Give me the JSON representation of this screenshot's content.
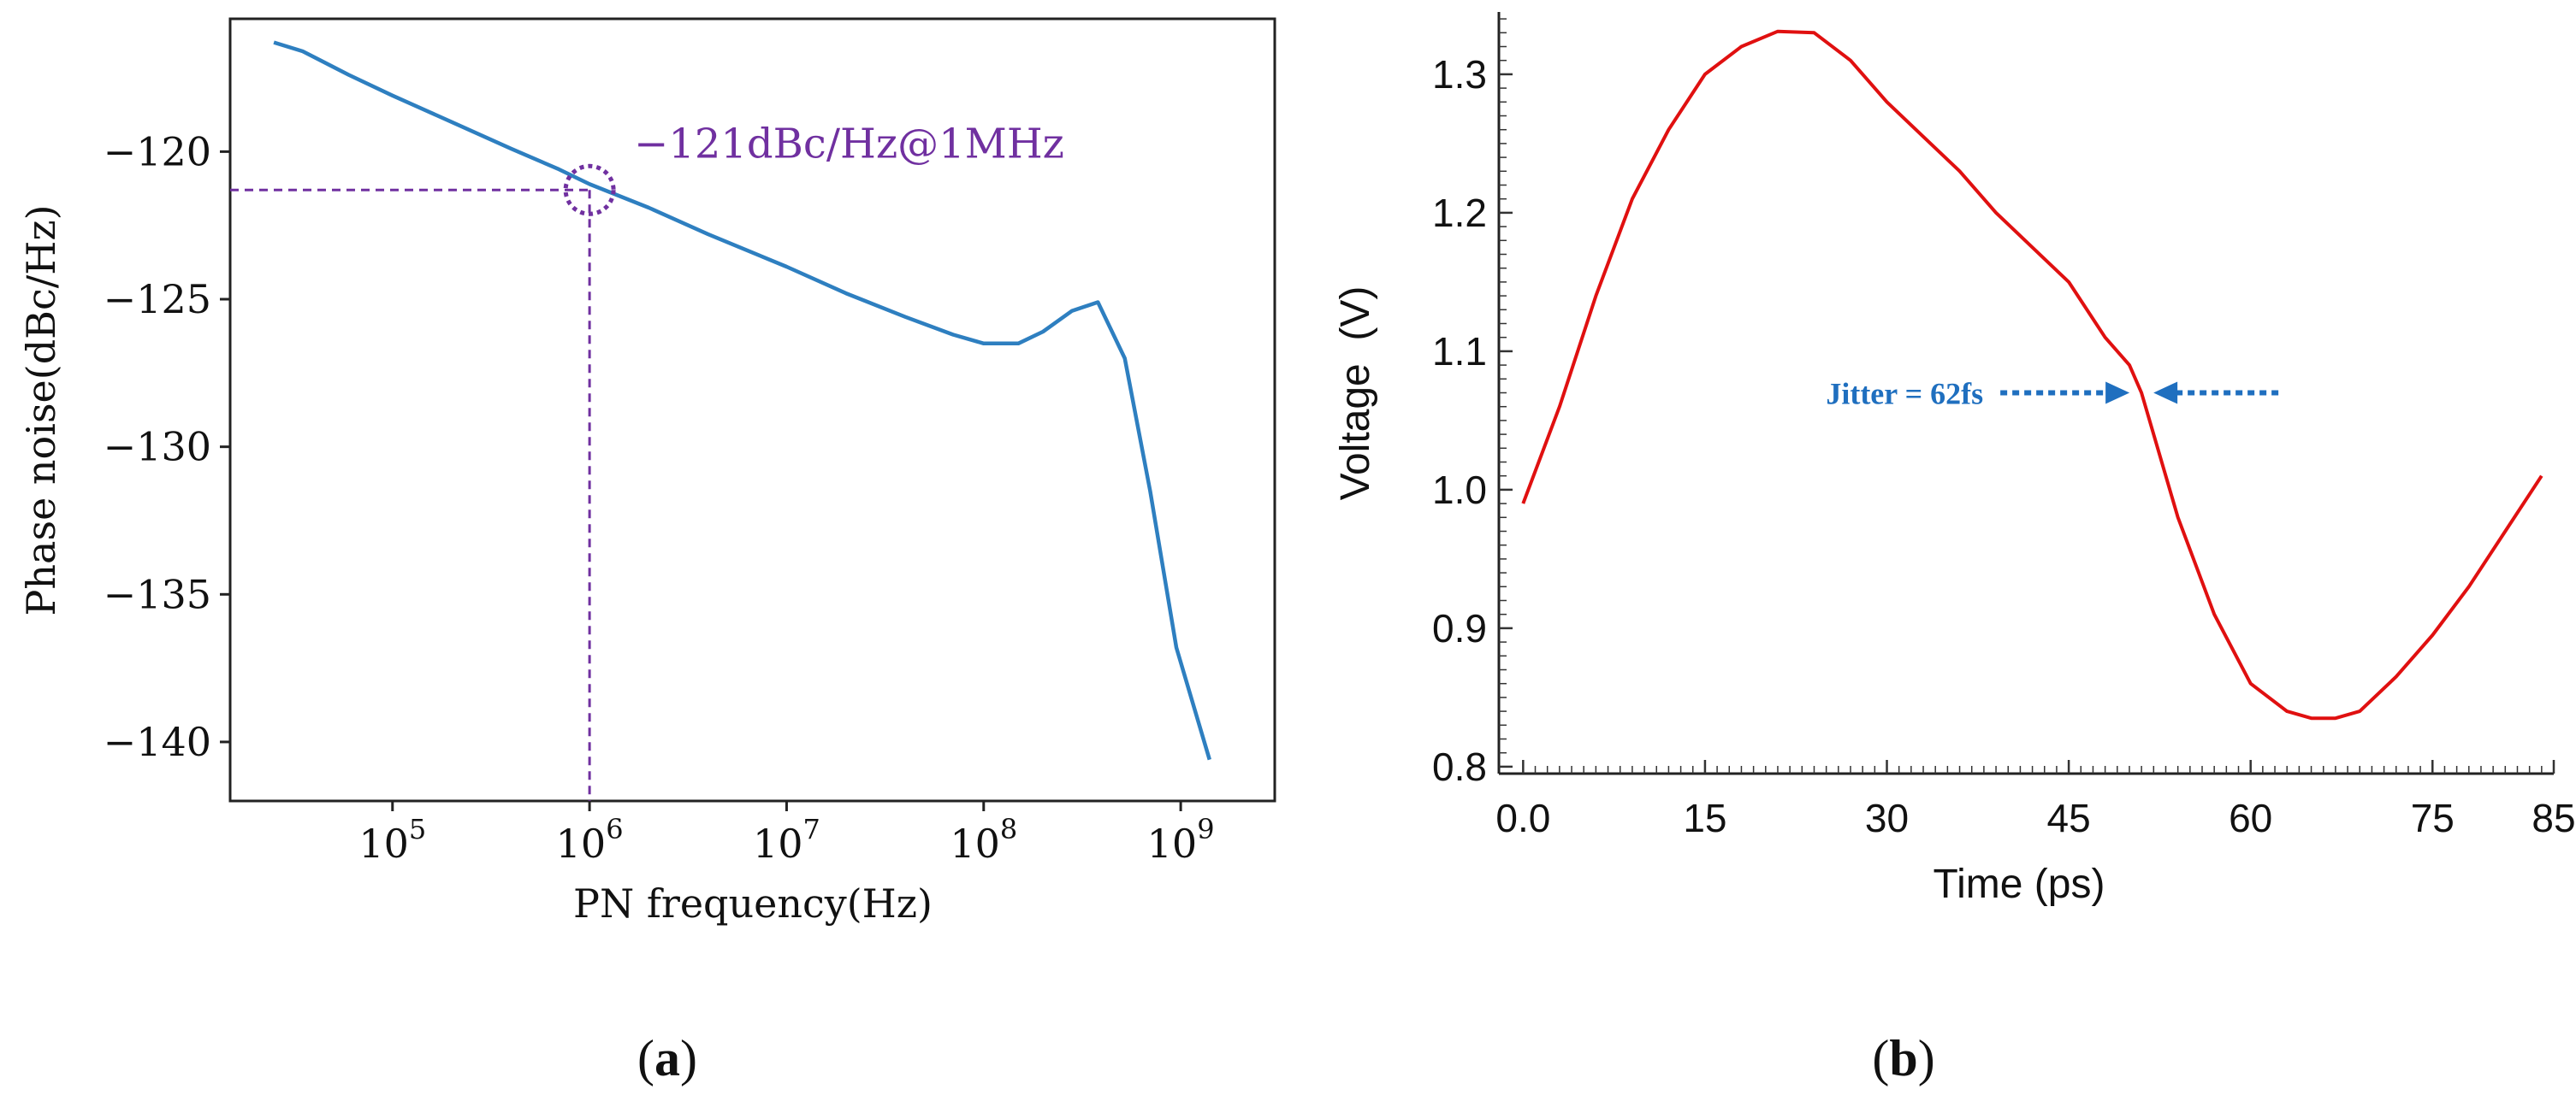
{
  "chart_data": [
    {
      "id": "a",
      "type": "line",
      "panel_label": "(a)",
      "xscale": "log",
      "xlabel": "PN frequency(Hz)",
      "ylabel": "Phase noise(dBc/Hz)",
      "xlim": [
        15000,
        3000000000
      ],
      "ylim": [
        -142,
        -115.5
      ],
      "xticks": [
        {
          "value": 100000,
          "label": "10",
          "exp": "5"
        },
        {
          "value": 1000000,
          "label": "10",
          "exp": "6"
        },
        {
          "value": 10000000,
          "label": "10",
          "exp": "7"
        },
        {
          "value": 100000000,
          "label": "10",
          "exp": "8"
        },
        {
          "value": 1000000000,
          "label": "10",
          "exp": "9"
        }
      ],
      "yticks": [
        {
          "value": -120,
          "label": "−120"
        },
        {
          "value": -125,
          "label": "−125"
        },
        {
          "value": -130,
          "label": "−130"
        },
        {
          "value": -135,
          "label": "−135"
        },
        {
          "value": -140,
          "label": "−140"
        }
      ],
      "series": [
        {
          "name": "phase noise",
          "color": "#2e7fc0",
          "x": [
            25000,
            35000,
            60000,
            100000,
            200000,
            400000,
            700000,
            1000000,
            2000000,
            4000000,
            10000000,
            20000000,
            40000000,
            70000000,
            100000000,
            150000000,
            200000000,
            280000000,
            380000000,
            520000000,
            700000000,
            950000000,
            1400000000
          ],
          "y": [
            -116.3,
            -116.6,
            -117.4,
            -118.1,
            -119.0,
            -119.9,
            -120.6,
            -121.1,
            -121.9,
            -122.8,
            -123.9,
            -124.8,
            -125.6,
            -126.2,
            -126.5,
            -126.5,
            -126.1,
            -125.4,
            -125.1,
            -127.0,
            -131.5,
            -136.8,
            -140.6
          ]
        }
      ],
      "annotation": {
        "text": "−121dBc/Hz@1MHz",
        "color": "#7030a0",
        "point_x": 1000000,
        "point_y": -121.3
      }
    },
    {
      "id": "b",
      "type": "line",
      "panel_label": "(b)",
      "xlabel": "Time (ps)",
      "ylabel": "Voltage  (V)",
      "xlim": [
        -2,
        85
      ],
      "ylim": [
        0.795,
        1.345
      ],
      "xticks": [
        {
          "value": 0,
          "label": "0.0"
        },
        {
          "value": 15,
          "label": "15"
        },
        {
          "value": 30,
          "label": "30"
        },
        {
          "value": 45,
          "label": "45"
        },
        {
          "value": 60,
          "label": "60"
        },
        {
          "value": 75,
          "label": "75"
        },
        {
          "value": 85,
          "label": "85"
        }
      ],
      "yticks": [
        {
          "value": 0.8,
          "label": "0.8"
        },
        {
          "value": 0.9,
          "label": "0.9"
        },
        {
          "value": 1.0,
          "label": "1.0"
        },
        {
          "value": 1.1,
          "label": "1.1"
        },
        {
          "value": 1.2,
          "label": "1.2"
        },
        {
          "value": 1.3,
          "label": "1.3"
        }
      ],
      "series": [
        {
          "name": "voltage",
          "color": "#e01010",
          "x": [
            0,
            3,
            6,
            9,
            12,
            15,
            18,
            21,
            24,
            27,
            30,
            33,
            36,
            39,
            42,
            45,
            48,
            50,
            51,
            52,
            54,
            57,
            60,
            63,
            65,
            67,
            69,
            72,
            75,
            78,
            81,
            84
          ],
          "y": [
            0.99,
            1.06,
            1.14,
            1.21,
            1.26,
            1.3,
            1.32,
            1.331,
            1.33,
            1.31,
            1.28,
            1.255,
            1.23,
            1.2,
            1.175,
            1.15,
            1.11,
            1.09,
            1.07,
            1.04,
            0.98,
            0.91,
            0.86,
            0.84,
            0.835,
            0.835,
            0.84,
            0.865,
            0.895,
            0.93,
            0.97,
            1.01
          ]
        }
      ],
      "annotation": {
        "text": "Jitter = 62fs",
        "color": "#1f6fbf",
        "point_x": 51,
        "point_y": 1.07
      }
    }
  ]
}
